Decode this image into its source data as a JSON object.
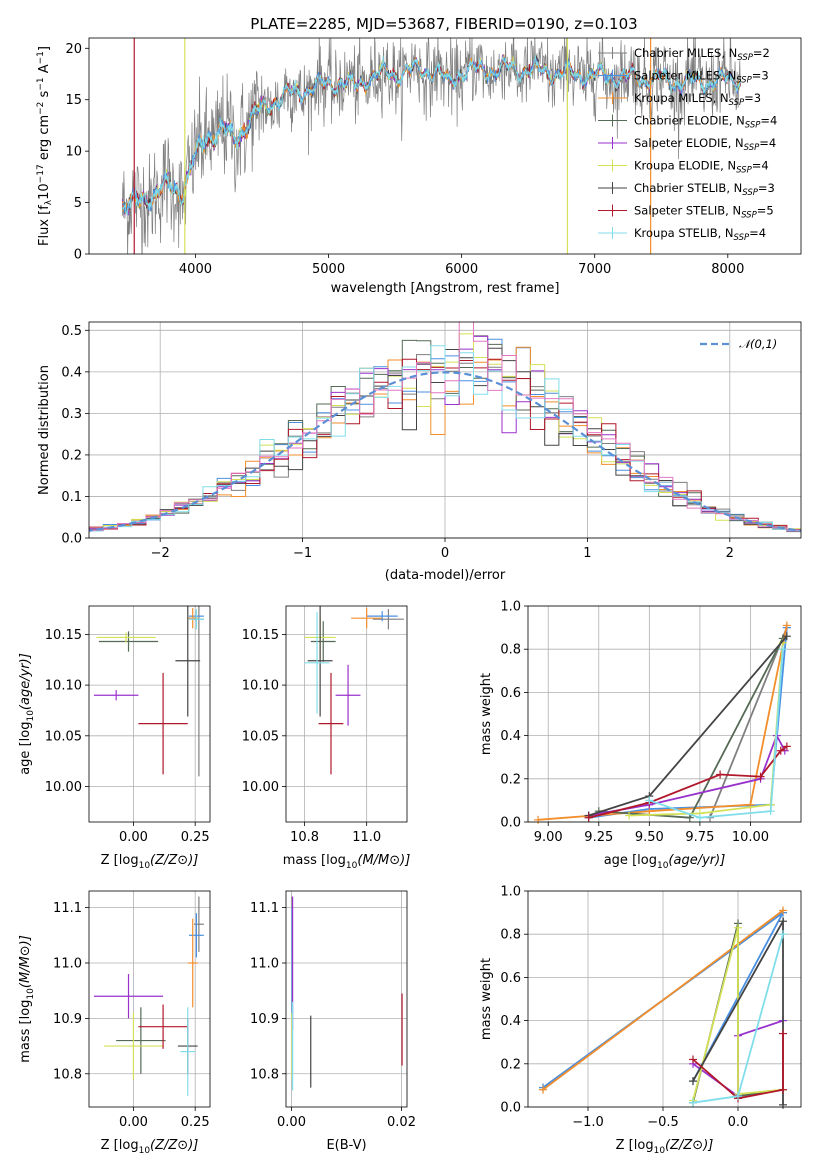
{
  "figure": {
    "title": "PLATE=2285, MJD=53687, FIBERID=0190, z=0.103"
  },
  "colors": {
    "chabrier_miles": "#7f7f7f",
    "salpeter_miles": "#4a90e2",
    "kroupa_miles": "#f28e2b",
    "chabrier_elodie": "#556b55",
    "salpeter_elodie": "#9932cc",
    "kroupa_elodie": "#d4e157",
    "chabrier_stelib": "#444444",
    "salpeter_stelib": "#b2182b",
    "kroupa_stelib": "#80deea",
    "normal": "#5b8fd6"
  },
  "chart_data": [
    {
      "id": "spectrum",
      "type": "line",
      "xlabel": "wavelength [Angstrom, rest frame]",
      "ylabel": "Flux [f_λ 10^-17 erg cm^-2 s^-1 A^-1]",
      "xlim": [
        3200,
        8550
      ],
      "ylim": [
        0,
        21
      ],
      "xticks": [
        4000,
        5000,
        6000,
        7000,
        8000
      ],
      "yticks": [
        0,
        5,
        10,
        15,
        20
      ],
      "legend_position": "top-right",
      "legend": [
        {
          "label": "Chabrier MILES, N",
          "sub": "SSP",
          "suffix": "=2",
          "color_key": "chabrier_miles"
        },
        {
          "label": "Salpeter MILES, N",
          "sub": "SSP",
          "suffix": "=3",
          "color_key": "salpeter_miles"
        },
        {
          "label": "Kroupa MILES, N",
          "sub": "SSP",
          "suffix": "=3",
          "color_key": "kroupa_miles"
        },
        {
          "label": "Chabrier ELODIE, N",
          "sub": "SSP",
          "suffix": "=4",
          "color_key": "chabrier_elodie"
        },
        {
          "label": "Salpeter ELODIE, N",
          "sub": "SSP",
          "suffix": "=4",
          "color_key": "salpeter_elodie"
        },
        {
          "label": "Kroupa ELODIE, N",
          "sub": "SSP",
          "suffix": "=4",
          "color_key": "kroupa_elodie"
        },
        {
          "label": "Chabrier STELIB, N",
          "sub": "SSP",
          "suffix": "=3",
          "color_key": "chabrier_stelib"
        },
        {
          "label": "Salpeter STELIB, N",
          "sub": "SSP",
          "suffix": "=5",
          "color_key": "salpeter_stelib"
        },
        {
          "label": "Kroupa STELIB, N",
          "sub": "SSP",
          "suffix": "=4",
          "color_key": "kroupa_stelib"
        }
      ],
      "continuum": [
        [
          3450,
          4.6
        ],
        [
          3600,
          5.2
        ],
        [
          3700,
          6.0
        ],
        [
          3800,
          6.5
        ],
        [
          3900,
          6.0
        ],
        [
          4000,
          9.5
        ],
        [
          4100,
          11.5
        ],
        [
          4200,
          12.2
        ],
        [
          4300,
          11.0
        ],
        [
          4400,
          13.0
        ],
        [
          4500,
          14.0
        ],
        [
          4600,
          15.0
        ],
        [
          4700,
          15.5
        ],
        [
          4800,
          15.8
        ],
        [
          4900,
          16.3
        ],
        [
          5000,
          16.5
        ],
        [
          5100,
          16.8
        ],
        [
          5200,
          16.2
        ],
        [
          5300,
          17.2
        ],
        [
          5400,
          17.5
        ],
        [
          5500,
          17.5
        ],
        [
          5600,
          17.8
        ],
        [
          5700,
          17.8
        ],
        [
          5800,
          17.9
        ],
        [
          5900,
          16.6
        ],
        [
          6000,
          17.8
        ],
        [
          6200,
          17.9
        ],
        [
          6400,
          18.0
        ],
        [
          6600,
          17.8
        ],
        [
          6800,
          17.5
        ],
        [
          7000,
          17.4
        ],
        [
          7200,
          17.2
        ],
        [
          7400,
          17.1
        ],
        [
          7600,
          16.8
        ],
        [
          7800,
          16.7
        ],
        [
          8000,
          16.9
        ],
        [
          8100,
          17.0
        ]
      ]
    },
    {
      "id": "residual-histogram",
      "type": "bar",
      "xlabel": "(data-model)/error",
      "ylabel": "Normed distribution",
      "xlim": [
        -2.5,
        2.5
      ],
      "ylim": [
        0,
        0.52
      ],
      "xticks": [
        -2,
        -1,
        0,
        1,
        2
      ],
      "yticks": [
        0.0,
        0.1,
        0.2,
        0.3,
        0.4,
        0.5
      ],
      "bin_width": 0.1,
      "series_label": "𝒩(0,1)",
      "legend_position": "top-right"
    },
    {
      "id": "age-vs-z",
      "type": "scatter",
      "xlabel": "Z [log10(Z/Z⊙)]",
      "ylabel": "age  [log10(age/yr)]",
      "xlim": [
        -0.18,
        0.31
      ],
      "ylim": [
        9.965,
        10.178
      ],
      "xticks": [
        0.0,
        0.25
      ],
      "yticks": [
        10.0,
        10.05,
        10.1,
        10.15
      ],
      "points": [
        {
          "c": "chabrier_miles",
          "x": 0.265,
          "y": 10.165,
          "xe": 0.02,
          "ye": 0.155
        },
        {
          "c": "salpeter_miles",
          "x": 0.255,
          "y": 10.168,
          "xe": 0.03,
          "ye": 0.005
        },
        {
          "c": "kroupa_miles",
          "x": 0.24,
          "y": 10.166,
          "xe": 0.02,
          "ye": 0.01
        },
        {
          "c": "chabrier_elodie",
          "x": -0.02,
          "y": 10.143,
          "xe": 0.12,
          "ye": 0.01
        },
        {
          "c": "salpeter_elodie",
          "x": -0.07,
          "y": 10.09,
          "xe": 0.09,
          "ye": 0.005
        },
        {
          "c": "kroupa_elodie",
          "x": -0.03,
          "y": 10.147,
          "xe": 0.12,
          "ye": 0.005
        },
        {
          "c": "chabrier_stelib",
          "x": 0.22,
          "y": 10.124,
          "xe": 0.05,
          "ye": 0.055
        },
        {
          "c": "salpeter_stelib",
          "x": 0.12,
          "y": 10.062,
          "xe": 0.1,
          "ye": 0.05
        },
        {
          "c": "kroupa_stelib",
          "x": 0.255,
          "y": 10.165,
          "xe": 0.03,
          "ye": 0.01
        }
      ]
    },
    {
      "id": "age-vs-mass",
      "type": "scatter",
      "xlabel": "mass [log10(M/M⊙)]",
      "ylabel": "",
      "xlim": [
        10.74,
        11.13
      ],
      "ylim": [
        9.965,
        10.178
      ],
      "xticks": [
        10.8,
        11.0
      ],
      "yticks": [
        10.0,
        10.05,
        10.1,
        10.15
      ],
      "points": [
        {
          "c": "chabrier_miles",
          "x": 11.07,
          "y": 10.165,
          "xe": 0.05,
          "ye": 0.01
        },
        {
          "c": "salpeter_miles",
          "x": 11.05,
          "y": 10.168,
          "xe": 0.05,
          "ye": 0.005
        },
        {
          "c": "kroupa_miles",
          "x": 11.0,
          "y": 10.166,
          "xe": 0.05,
          "ye": 0.01
        },
        {
          "c": "chabrier_elodie",
          "x": 10.86,
          "y": 10.143,
          "xe": 0.04,
          "ye": 0.02
        },
        {
          "c": "salpeter_elodie",
          "x": 10.94,
          "y": 10.09,
          "xe": 0.04,
          "ye": 0.03
        },
        {
          "c": "kroupa_elodie",
          "x": 10.85,
          "y": 10.147,
          "xe": 0.05,
          "ye": 0.02
        },
        {
          "c": "chabrier_stelib",
          "x": 10.85,
          "y": 10.124,
          "xe": 0.04,
          "ye": 0.055
        },
        {
          "c": "salpeter_stelib",
          "x": 10.885,
          "y": 10.062,
          "xe": 0.04,
          "ye": 0.05
        },
        {
          "c": "kroupa_stelib",
          "x": 10.84,
          "y": 10.122,
          "xe": 0.04,
          "ye": 0.05
        }
      ]
    },
    {
      "id": "weight-vs-age",
      "type": "line",
      "xlabel": "age  [log10(age/yr)]",
      "ylabel": "mass weight",
      "xlim": [
        8.9,
        10.25
      ],
      "ylim": [
        0,
        1
      ],
      "xticks": [
        9.0,
        9.25,
        9.5,
        9.75,
        10.0
      ],
      "yticks": [
        0.0,
        0.2,
        0.4,
        0.6,
        0.8,
        1.0
      ],
      "series": [
        {
          "c": "chabrier_miles",
          "x": [
            9.8,
            10.18
          ],
          "y": [
            0.02,
            0.9
          ]
        },
        {
          "c": "salpeter_miles",
          "x": [
            9.2,
            9.5,
            10.1,
            10.18
          ],
          "y": [
            0.02,
            0.06,
            0.08,
            0.9
          ]
        },
        {
          "c": "kroupa_miles",
          "x": [
            8.95,
            9.5,
            10.0,
            10.18
          ],
          "y": [
            0.01,
            0.05,
            0.08,
            0.91
          ]
        },
        {
          "c": "chabrier_elodie",
          "x": [
            9.25,
            9.7,
            10.16
          ],
          "y": [
            0.05,
            0.02,
            0.85
          ]
        },
        {
          "c": "salpeter_elodie",
          "x": [
            9.2,
            9.5,
            10.05,
            10.13,
            10.17
          ],
          "y": [
            0.03,
            0.08,
            0.2,
            0.4,
            0.33
          ]
        },
        {
          "c": "kroupa_elodie",
          "x": [
            9.4,
            9.75,
            10.1,
            10.16
          ],
          "y": [
            0.03,
            0.04,
            0.08,
            0.83
          ]
        },
        {
          "c": "chabrier_stelib",
          "x": [
            9.2,
            9.5,
            10.18
          ],
          "y": [
            0.03,
            0.12,
            0.86
          ]
        },
        {
          "c": "salpeter_stelib",
          "x": [
            9.2,
            9.5,
            9.85,
            10.05,
            10.15,
            10.18
          ],
          "y": [
            0.02,
            0.09,
            0.22,
            0.21,
            0.33,
            0.35
          ]
        },
        {
          "c": "kroupa_stelib",
          "x": [
            9.5,
            9.75,
            10.1,
            10.16
          ],
          "y": [
            0.1,
            0.02,
            0.05,
            0.8
          ]
        }
      ]
    },
    {
      "id": "mass-vs-z",
      "type": "scatter",
      "xlabel": "Z [log10(Z/Z⊙)]",
      "ylabel": "mass [log10(M/M⊙)]",
      "xlim": [
        -0.18,
        0.31
      ],
      "ylim": [
        10.74,
        11.13
      ],
      "xticks": [
        0.0,
        0.25
      ],
      "yticks": [
        10.8,
        10.9,
        11.0,
        11.1
      ],
      "points": [
        {
          "c": "chabrier_miles",
          "x": 0.265,
          "y": 11.07,
          "xe": 0.02,
          "ye": 0.05
        },
        {
          "c": "salpeter_miles",
          "x": 0.255,
          "y": 11.05,
          "xe": 0.03,
          "ye": 0.04
        },
        {
          "c": "kroupa_miles",
          "x": 0.24,
          "y": 11.0,
          "xe": 0.02,
          "ye": 0.08
        },
        {
          "c": "chabrier_elodie",
          "x": 0.03,
          "y": 10.86,
          "xe": 0.1,
          "ye": 0.06
        },
        {
          "c": "salpeter_elodie",
          "x": -0.02,
          "y": 10.94,
          "xe": 0.14,
          "ye": 0.04
        },
        {
          "c": "kroupa_elodie",
          "x": 0.0,
          "y": 10.85,
          "xe": 0.12,
          "ye": 0.06
        },
        {
          "c": "chabrier_stelib",
          "x": 0.22,
          "y": 10.85,
          "xe": 0.04,
          "ye": 0.05
        },
        {
          "c": "salpeter_stelib",
          "x": 0.12,
          "y": 10.885,
          "xe": 0.1,
          "ye": 0.04
        },
        {
          "c": "kroupa_stelib",
          "x": 0.22,
          "y": 10.84,
          "xe": 0.03,
          "ye": 0.08
        }
      ]
    },
    {
      "id": "mass-vs-ebv",
      "type": "scatter",
      "xlabel": "E(B-V)",
      "ylabel": "",
      "xlim": [
        -0.001,
        0.021
      ],
      "ylim": [
        10.74,
        11.13
      ],
      "xticks": [
        0.0,
        0.02
      ],
      "yticks": [
        10.8,
        10.9,
        11.0,
        11.1
      ],
      "points": [
        {
          "c": "chabrier_miles",
          "x": 0.0001,
          "y": 11.07,
          "xe": 0,
          "ye": 0.05
        },
        {
          "c": "salpeter_miles",
          "x": 0.0001,
          "y": 11.0,
          "xe": 0,
          "ye": 0.1
        },
        {
          "c": "salpeter_elodie",
          "x": 0.0002,
          "y": 11.0,
          "xe": 0,
          "ye": 0.12
        },
        {
          "c": "kroupa_elodie",
          "x": 0.0001,
          "y": 10.85,
          "xe": 0,
          "ye": 0.06
        },
        {
          "c": "kroupa_stelib",
          "x": 0.0002,
          "y": 10.85,
          "xe": 0,
          "ye": 0.08
        },
        {
          "c": "chabrier_stelib",
          "x": 0.0035,
          "y": 10.84,
          "xe": 0,
          "ye": 0.065
        },
        {
          "c": "salpeter_stelib",
          "x": 0.0201,
          "y": 10.88,
          "xe": 0,
          "ye": 0.065
        }
      ]
    },
    {
      "id": "weight-vs-z",
      "type": "line",
      "xlabel": "Z [log10(Z/Z⊙)]",
      "ylabel": "mass weight",
      "xlim": [
        -1.4,
        0.42
      ],
      "ylim": [
        0,
        1
      ],
      "xticks": [
        -1.0,
        -0.5,
        0.0
      ],
      "yticks": [
        0.0,
        0.2,
        0.4,
        0.6,
        0.8,
        1.0
      ],
      "series": [
        {
          "c": "chabrier_miles",
          "x": [
            -1.3,
            0.3
          ],
          "y": [
            0.09,
            0.9
          ]
        },
        {
          "c": "salpeter_miles",
          "x": [
            -1.3,
            0.3,
            -0.3
          ],
          "y": [
            0.09,
            0.9,
            0.12
          ]
        },
        {
          "c": "kroupa_miles",
          "x": [
            -1.3,
            0.3
          ],
          "y": [
            0.08,
            0.91
          ]
        },
        {
          "c": "chabrier_elodie",
          "x": [
            -0.3,
            0.0,
            0.0,
            0.3
          ],
          "y": [
            0.02,
            0.85,
            0.05,
            0.08
          ]
        },
        {
          "c": "salpeter_elodie",
          "x": [
            -0.3,
            0.0,
            0.0,
            0.3
          ],
          "y": [
            0.2,
            0.05,
            0.33,
            0.4
          ]
        },
        {
          "c": "kroupa_elodie",
          "x": [
            -0.3,
            0.0,
            0.0,
            0.3
          ],
          "y": [
            0.03,
            0.83,
            0.06,
            0.08
          ]
        },
        {
          "c": "chabrier_stelib",
          "x": [
            -0.3,
            0.3,
            0.3
          ],
          "y": [
            0.12,
            0.86,
            0.01
          ]
        },
        {
          "c": "salpeter_stelib",
          "x": [
            -0.3,
            0.0,
            0.3,
            0.3
          ],
          "y": [
            0.22,
            0.04,
            0.08,
            0.34
          ]
        },
        {
          "c": "kroupa_stelib",
          "x": [
            -0.3,
            0.0,
            0.3
          ],
          "y": [
            0.02,
            0.05,
            0.8
          ]
        }
      ]
    }
  ]
}
